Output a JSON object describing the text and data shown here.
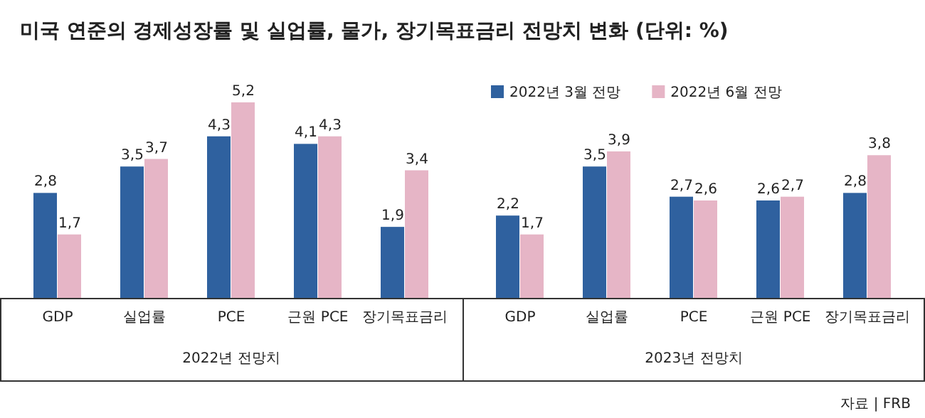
{
  "chart_data": [
    {
      "type": "bar",
      "title": "미국 연준의 경제성장률 및 실업률, 물가, 장기목표금리 전망치 변화 (단위: %)",
      "xlabel": "2022년 전망치",
      "legend": "top right",
      "categories": [
        "GDP",
        "실업률",
        "PCE",
        "근원 PCE",
        "장기목표금리"
      ],
      "series": [
        {
          "name": "2022년 3월 전망",
          "color": "#2f619f",
          "values": [
            2.8,
            3.5,
            4.3,
            4.1,
            1.9
          ],
          "value_labels": [
            "2,8",
            "3,5",
            "4,3",
            "4,1",
            "1,9"
          ]
        },
        {
          "name": "2022년 6월 전망",
          "color": "#e6b5c6",
          "values": [
            1.7,
            3.7,
            5.2,
            4.3,
            3.4
          ],
          "value_labels": [
            "1,7",
            "3,7",
            "5,2",
            "4,3",
            "3,4"
          ]
        }
      ]
    },
    {
      "type": "bar",
      "xlabel": "2023년 전망치",
      "categories": [
        "GDP",
        "실업률",
        "PCE",
        "근원 PCE",
        "장기목표금리"
      ],
      "series": [
        {
          "color": "#2f619f",
          "values": [
            2.2,
            3.5,
            2.7,
            2.6,
            2.8
          ],
          "value_labels": [
            "2,2",
            "3,5",
            "2,7",
            "2,6",
            "2,8"
          ]
        },
        {
          "color": "#e6b5c6",
          "values": [
            1.7,
            3.9,
            2.6,
            2.7,
            3.8
          ],
          "value_labels": [
            "1,7",
            "3,9",
            "2,6",
            "2,7",
            "3,8"
          ]
        }
      ],
      "annotations": [
        "자료 | FRB"
      ]
    }
  ]
}
